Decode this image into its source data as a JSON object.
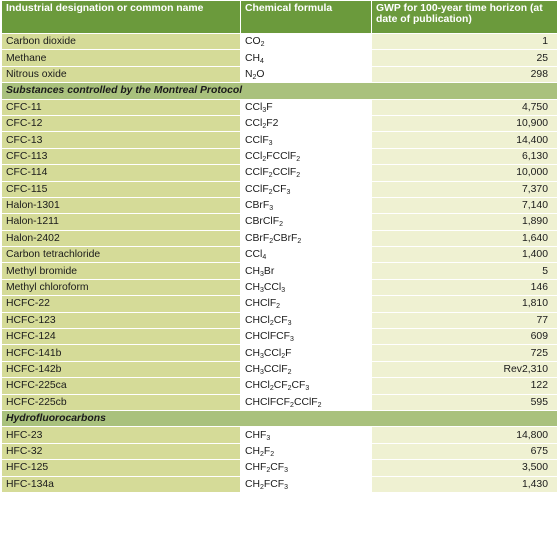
{
  "header": {
    "col1": "Industrial designation or common name",
    "col2": "Chemical formula",
    "col3": "GWP for 100-year time horizon (at date of publication)"
  },
  "groups": [
    {
      "title": "",
      "rows": [
        {
          "name": "Carbon dioxide",
          "formula": [
            [
              "CO",
              ""
            ],
            [
              "2",
              "s"
            ]
          ],
          "gwp": "1"
        },
        {
          "name": "Methane",
          "formula": [
            [
              "CH",
              ""
            ],
            [
              "4",
              "s"
            ]
          ],
          "gwp": "25"
        },
        {
          "name": "Nitrous oxide",
          "formula": [
            [
              "N",
              ""
            ],
            [
              "2",
              "s"
            ],
            [
              "O",
              ""
            ]
          ],
          "gwp": "298"
        }
      ]
    },
    {
      "title": "Substances controlled by the Montreal Protocol",
      "rows": [
        {
          "name": "CFC-11",
          "formula": [
            [
              "CCl",
              ""
            ],
            [
              "3",
              "s"
            ],
            [
              "F",
              ""
            ]
          ],
          "gwp": "4,750"
        },
        {
          "name": "CFC-12",
          "formula": [
            [
              "CCl",
              ""
            ],
            [
              "2",
              "s"
            ],
            [
              "F2",
              ""
            ]
          ],
          "gwp": "10,900"
        },
        {
          "name": "CFC-13",
          "formula": [
            [
              "CClF",
              ""
            ],
            [
              "3",
              "s"
            ]
          ],
          "gwp": "14,400"
        },
        {
          "name": "CFC-113",
          "formula": [
            [
              "CCl",
              ""
            ],
            [
              "2",
              "s"
            ],
            [
              "FCClF",
              ""
            ],
            [
              "2",
              "s"
            ]
          ],
          "gwp": "6,130"
        },
        {
          "name": "CFC-114",
          "formula": [
            [
              "CClF",
              ""
            ],
            [
              "2",
              "s"
            ],
            [
              "CClF",
              ""
            ],
            [
              "2",
              "s"
            ]
          ],
          "gwp": "10,000"
        },
        {
          "name": "CFC-115",
          "formula": [
            [
              "CClF",
              ""
            ],
            [
              "2",
              "s"
            ],
            [
              "CF",
              ""
            ],
            [
              "3",
              "s"
            ]
          ],
          "gwp": "7,370"
        },
        {
          "name": "Halon-1301",
          "formula": [
            [
              "CBrF",
              ""
            ],
            [
              "3",
              "s"
            ]
          ],
          "gwp": "7,140"
        },
        {
          "name": "Halon-1211",
          "formula": [
            [
              "CBrClF",
              ""
            ],
            [
              "2",
              "s"
            ]
          ],
          "gwp": "1,890"
        },
        {
          "name": "Halon-2402",
          "formula": [
            [
              "CBrF",
              ""
            ],
            [
              "2",
              "s"
            ],
            [
              "CBrF",
              ""
            ],
            [
              "2",
              "s"
            ]
          ],
          "gwp": "1,640"
        },
        {
          "name": "Carbon tetrachloride",
          "formula": [
            [
              "CCl",
              ""
            ],
            [
              "4",
              "s"
            ]
          ],
          "gwp": "1,400"
        },
        {
          "name": "Methyl bromide",
          "formula": [
            [
              "CH",
              ""
            ],
            [
              "3",
              "s"
            ],
            [
              "Br",
              ""
            ]
          ],
          "gwp": "5"
        },
        {
          "name": "Methyl chloroform",
          "formula": [
            [
              "CH",
              ""
            ],
            [
              "3",
              "s"
            ],
            [
              "CCl",
              ""
            ],
            [
              "3",
              "s"
            ]
          ],
          "gwp": "146"
        },
        {
          "name": "HCFC-22",
          "formula": [
            [
              "CHClF",
              ""
            ],
            [
              "2",
              "s"
            ]
          ],
          "gwp": "1,810"
        },
        {
          "name": "HCFC-123",
          "formula": [
            [
              "CHCl",
              ""
            ],
            [
              "2",
              "s"
            ],
            [
              "CF",
              ""
            ],
            [
              "3",
              "s"
            ]
          ],
          "gwp": "77"
        },
        {
          "name": "HCFC-124",
          "formula": [
            [
              "CHClFCF",
              ""
            ],
            [
              "3",
              "s"
            ]
          ],
          "gwp": "609"
        },
        {
          "name": "HCFC-141b",
          "formula": [
            [
              "CH",
              ""
            ],
            [
              "3",
              "s"
            ],
            [
              "CCl",
              ""
            ],
            [
              "2",
              "s"
            ],
            [
              "F",
              ""
            ]
          ],
          "gwp": "725"
        },
        {
          "name": "HCFC-142b",
          "formula": [
            [
              "CH",
              ""
            ],
            [
              "3",
              "s"
            ],
            [
              "CClF",
              ""
            ],
            [
              "2",
              "s"
            ]
          ],
          "gwp": "Rev2,310"
        },
        {
          "name": "HCFC-225ca",
          "formula": [
            [
              "CHCl",
              ""
            ],
            [
              "2",
              "s"
            ],
            [
              "CF",
              ""
            ],
            [
              "2",
              "s"
            ],
            [
              "CF",
              ""
            ],
            [
              "3",
              "s"
            ]
          ],
          "gwp": "122"
        },
        {
          "name": "HCFC-225cb",
          "formula": [
            [
              "CHClFCF",
              ""
            ],
            [
              "2",
              "s"
            ],
            [
              "CClF",
              ""
            ],
            [
              "2",
              "s"
            ]
          ],
          "gwp": "595"
        }
      ]
    },
    {
      "title": "Hydrofluorocarbons",
      "rows": [
        {
          "name": "HFC-23",
          "formula": [
            [
              "CHF",
              ""
            ],
            [
              "3",
              "s"
            ]
          ],
          "gwp": "14,800"
        },
        {
          "name": "HFC-32",
          "formula": [
            [
              "CH",
              ""
            ],
            [
              "2",
              "s"
            ],
            [
              "F",
              ""
            ],
            [
              "2",
              "s"
            ]
          ],
          "gwp": "675"
        },
        {
          "name": "HFC-125",
          "formula": [
            [
              "CHF",
              ""
            ],
            [
              "2",
              "s"
            ],
            [
              "CF",
              ""
            ],
            [
              "3",
              "s"
            ]
          ],
          "gwp": "3,500"
        },
        {
          "name": "HFC-134a",
          "formula": [
            [
              "CH",
              ""
            ],
            [
              "2",
              "s"
            ],
            [
              "FCF",
              ""
            ],
            [
              "3",
              "s"
            ]
          ],
          "gwp": "1,430"
        }
      ]
    }
  ]
}
